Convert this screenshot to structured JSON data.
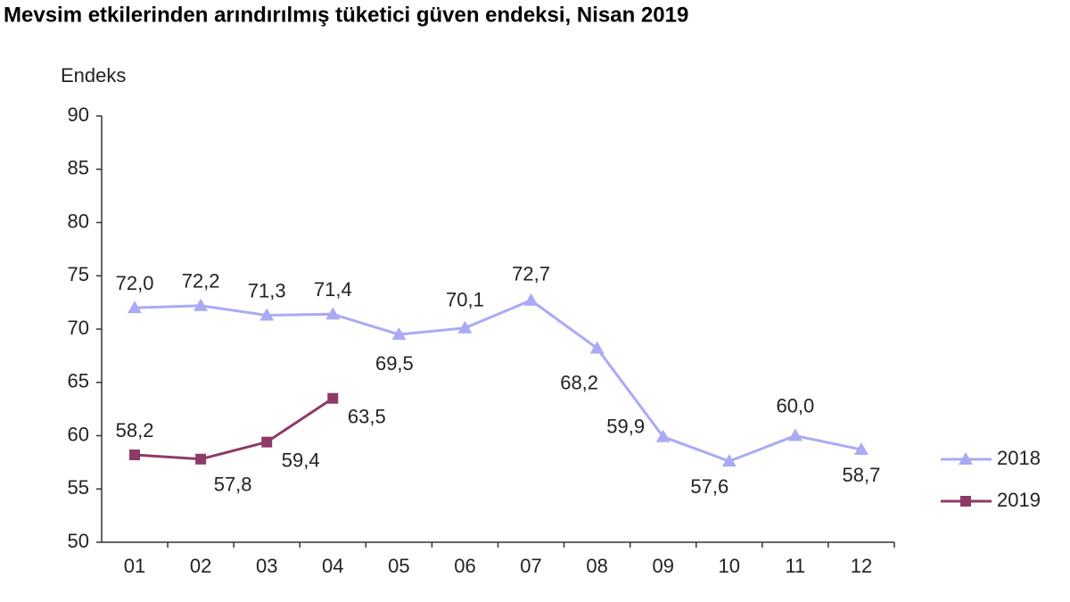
{
  "chart_data": {
    "type": "line",
    "title": "Mevsim etkilerinden arındırılmış tüketici güven endeksi, Nisan 2019",
    "y_label": "Endeks",
    "categories": [
      "01",
      "02",
      "03",
      "04",
      "05",
      "06",
      "07",
      "08",
      "09",
      "10",
      "11",
      "12"
    ],
    "series": [
      {
        "name": "2018",
        "color": "#aaaaf4",
        "marker": "triangle",
        "values": [
          72.0,
          72.2,
          71.3,
          71.4,
          69.5,
          70.1,
          72.7,
          68.2,
          59.9,
          57.6,
          60.0,
          58.7
        ],
        "value_labels": [
          "72,0",
          "72,2",
          "71,3",
          "71,4",
          "69,5",
          "70,1",
          "72,7",
          "68,2",
          "59,9",
          "57,6",
          "60,0",
          "58,7"
        ]
      },
      {
        "name": "2019",
        "color": "#8e3a66",
        "marker": "square",
        "values": [
          58.2,
          57.8,
          59.4,
          63.5,
          null,
          null,
          null,
          null,
          null,
          null,
          null,
          null
        ],
        "value_labels": [
          "58,2",
          "57,8",
          "59,4",
          "63,5",
          null,
          null,
          null,
          null,
          null,
          null,
          null,
          null
        ]
      }
    ],
    "ylim": [
      50,
      90
    ],
    "yticks": [
      50,
      55,
      60,
      65,
      70,
      75,
      80,
      85,
      90
    ],
    "legend": "right"
  }
}
